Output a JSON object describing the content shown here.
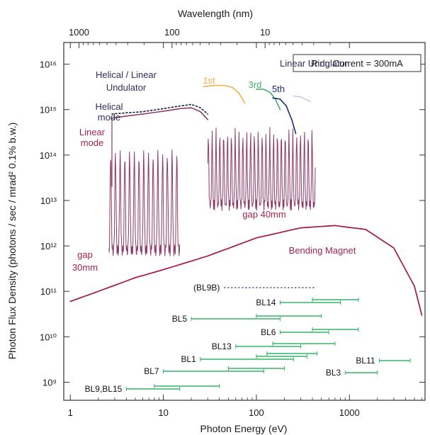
{
  "chart_data": {
    "type": "line",
    "xlabel": "Photon Energy (eV)",
    "ylabel": "Photon Flux Density (photons / sec / mrad² 0.1% b.w.)",
    "top_xlabel": "Wavelength (nm)",
    "x_scale": "log",
    "y_scale": "log",
    "xlim": [
      0.85,
      6500
    ],
    "ylim": [
      400000000.0,
      3e+16
    ],
    "x_ticks": [
      {
        "value": 1,
        "label": "1"
      },
      {
        "value": 10,
        "label": "10"
      },
      {
        "value": 100,
        "label": "100"
      },
      {
        "value": 1000,
        "label": "1000"
      }
    ],
    "top_ticks": [
      {
        "value": 1.24,
        "label": "1000"
      },
      {
        "value": 12.4,
        "label": "100"
      },
      {
        "value": 124,
        "label": "10"
      }
    ],
    "y_ticks": [
      {
        "value": 1000000000.0,
        "label": "10⁹"
      },
      {
        "value": 10000000000.0,
        "label": "10¹⁰"
      },
      {
        "value": 100000000000.0,
        "label": "10¹¹"
      },
      {
        "value": 1000000000000.0,
        "label": "10¹²"
      },
      {
        "value": 10000000000000.0,
        "label": "10¹³"
      },
      {
        "value": 100000000000000.0,
        "label": "10¹⁴"
      },
      {
        "value": 1000000000000000.0,
        "label": "10¹⁵"
      },
      {
        "value": 1e+16,
        "label": "10¹⁶"
      }
    ],
    "legend_box": "Ring Current = 300mA",
    "colors": {
      "bending": "#a3234e",
      "linear_mode": "#8c3a6a",
      "helical": "#1a1a3a",
      "harm1": "#f0b24a",
      "harm3": "#3cae6a",
      "harm5": "#1c2d6e",
      "harm7": "#c9c2e6",
      "beamline": "#33b56a",
      "bl9b": "#3f3f7a",
      "brown_text": "#a3234e",
      "navy_text": "#2f2f5a"
    },
    "series": [
      {
        "name": "Bending Magnet",
        "x": [
          1,
          2,
          5,
          10,
          30,
          100,
          300,
          700,
          1500,
          3000,
          5000,
          6000
        ],
        "y": [
          60000000000.0,
          100000000000.0,
          200000000000.0,
          300000000000.0,
          600000000000.0,
          1500000000000.0,
          2500000000000.0,
          2800000000000.0,
          2300000000000.0,
          900000000000.0,
          130000000000.0,
          30000000000.0
        ]
      },
      {
        "name": "Helical mode",
        "x": [
          2.8,
          4,
          6,
          10,
          15,
          20,
          25,
          30
        ],
        "y": [
          800000000000000.0,
          850000000000000.0,
          900000000000000.0,
          1050000000000000.0,
          1200000000000000.0,
          1300000000000000.0,
          1100000000000000.0,
          800000000000000.0
        ]
      },
      {
        "name": "Linear mode",
        "x": [
          2.8,
          4,
          6,
          10,
          15,
          20,
          25,
          30
        ],
        "y": [
          650000000000000.0,
          720000000000000.0,
          800000000000000.0,
          920000000000000.0,
          1050000000000000.0,
          1100000000000000.0,
          900000000000000.0,
          600000000000000.0
        ]
      },
      {
        "name": "1st",
        "x": [
          27,
          35,
          45,
          55,
          65,
          75
        ],
        "y": [
          3200000000000000.0,
          3400000000000000.0,
          3400000000000000.0,
          3100000000000000.0,
          2300000000000000.0,
          1400000000000000.0
        ]
      },
      {
        "name": "3rd",
        "x": [
          100,
          120,
          140,
          160,
          180
        ],
        "y": [
          2800000000000000.0,
          2800000000000000.0,
          2400000000000000.0,
          1700000000000000.0,
          1000000000000000.0
        ]
      },
      {
        "name": "5th",
        "x": [
          150,
          180,
          210,
          240,
          265
        ],
        "y": [
          1800000000000000.0,
          1700000000000000.0,
          1200000000000000.0,
          600000000000000.0,
          300000000000000.0
        ]
      }
    ],
    "beamlines": [
      {
        "name": "(BL9B)",
        "ranges": [
          [
            45,
            420
          ]
        ],
        "dotted": true
      },
      {
        "name": "BL14",
        "ranges": [
          [
            180,
            800
          ],
          [
            400,
            1250
          ]
        ]
      },
      {
        "name": "BL5",
        "ranges": [
          [
            20,
            180
          ],
          [
            100,
            500
          ]
        ]
      },
      {
        "name": "BL6",
        "ranges": [
          [
            180,
            600
          ],
          [
            400,
            1250
          ]
        ]
      },
      {
        "name": "BL13",
        "ranges": [
          [
            60,
            300
          ],
          [
            150,
            700
          ]
        ]
      },
      {
        "name": "BL1",
        "ranges": [
          [
            25,
            250
          ],
          [
            100,
            350
          ],
          [
            130,
            450
          ]
        ]
      },
      {
        "name": "BL7",
        "ranges": [
          [
            10,
            120
          ],
          [
            50,
            200
          ]
        ]
      },
      {
        "name": "BL11",
        "ranges": [
          [
            2100,
            4500
          ]
        ]
      },
      {
        "name": "BL3",
        "ranges": [
          [
            900,
            2000
          ]
        ]
      },
      {
        "name": "BL9,BL15",
        "ranges": [
          [
            4,
            15
          ],
          [
            8,
            40
          ]
        ]
      }
    ],
    "annotations": [
      {
        "text": "Helical / Linear",
        "color": "navy_text"
      },
      {
        "text": "Undulator",
        "color": "navy_text"
      },
      {
        "text": "Linear Undulator",
        "color": "navy_text"
      },
      {
        "text": "Helical",
        "color": "navy_text"
      },
      {
        "text": "mode",
        "color": "navy_text"
      },
      {
        "text": "Linear",
        "color": "brown_text"
      },
      {
        "text": "mode",
        "color": "brown_text"
      },
      {
        "text": "1st",
        "color": "harm1"
      },
      {
        "text": "3rd",
        "color": "harm3"
      },
      {
        "text": "5th",
        "color": "harm5"
      },
      {
        "text": "gap 40mm",
        "color": "brown_text"
      },
      {
        "text": "gap",
        "color": "brown_text"
      },
      {
        "text": "30mm",
        "color": "brown_text"
      },
      {
        "text": "Bending Magnet",
        "color": "brown_text"
      }
    ]
  }
}
